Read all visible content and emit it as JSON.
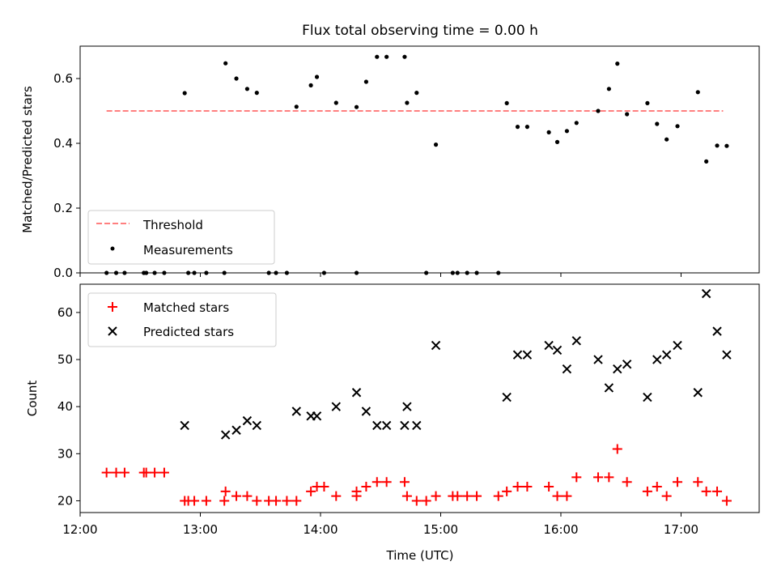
{
  "title": "Flux total observing time = 0.00 h",
  "chart_data": [
    {
      "type": "scatter",
      "ylabel": "Matched/Predicted stars",
      "xlim": [
        12.0,
        17.65
      ],
      "ylim": [
        0.0,
        0.7
      ],
      "yticks": [
        0.0,
        0.2,
        0.4,
        0.6
      ],
      "legend_position": "lower-left",
      "series": [
        {
          "name": "Threshold",
          "style": "dashed-line",
          "color": "#ff7f7f",
          "x": [
            12.22,
            17.35
          ],
          "y": [
            0.5,
            0.5
          ]
        },
        {
          "name": "Measurements",
          "style": "dot",
          "color": "#000000",
          "x": [
            12.22,
            12.3,
            12.37,
            12.53,
            12.55,
            12.62,
            12.7,
            12.87,
            12.9,
            12.95,
            13.05,
            13.2,
            13.21,
            13.3,
            13.39,
            13.47,
            13.57,
            13.63,
            13.72,
            13.8,
            13.92,
            13.97,
            14.03,
            14.13,
            14.3,
            14.3,
            14.38,
            14.47,
            14.55,
            14.7,
            14.72,
            14.8,
            14.88,
            14.96,
            15.1,
            15.14,
            15.22,
            15.3,
            15.48,
            15.55,
            15.64,
            15.72,
            15.9,
            15.97,
            16.05,
            16.13,
            16.31,
            16.4,
            16.47,
            16.55,
            16.72,
            16.8,
            16.88,
            16.97,
            17.14,
            17.21,
            17.3,
            17.38
          ],
          "y": [
            0.0,
            0.0,
            0.0,
            0.0,
            0.0,
            0.0,
            0.0,
            0.555,
            0.0,
            0.0,
            0.0,
            0.0,
            0.647,
            0.6,
            0.568,
            0.556,
            0.0,
            0.0,
            0.0,
            0.513,
            0.579,
            0.605,
            0.0,
            0.525,
            0.512,
            0.0,
            0.59,
            0.667,
            0.667,
            0.667,
            0.525,
            0.556,
            0.0,
            0.396,
            0.0,
            0.0,
            0.0,
            0.0,
            0.0,
            0.524,
            0.451,
            0.451,
            0.434,
            0.404,
            0.438,
            0.463,
            0.5,
            0.568,
            0.646,
            0.49,
            0.524,
            0.46,
            0.412,
            0.453,
            0.558,
            0.344,
            0.393,
            0.392
          ]
        }
      ]
    },
    {
      "type": "scatter",
      "xlabel": "Time (UTC)",
      "ylabel": "Count",
      "xlim": [
        12.0,
        17.65
      ],
      "ylim": [
        17.5,
        66
      ],
      "yticks": [
        20,
        30,
        40,
        50,
        60
      ],
      "xticks": [
        12,
        13,
        14,
        15,
        16,
        17
      ],
      "xticklabels": [
        "12:00",
        "13:00",
        "14:00",
        "15:00",
        "16:00",
        "17:00"
      ],
      "legend_position": "upper-left",
      "series": [
        {
          "name": "Matched stars",
          "style": "plus",
          "color": "#ff0000",
          "x": [
            12.22,
            12.3,
            12.37,
            12.53,
            12.55,
            12.62,
            12.7,
            12.87,
            12.9,
            12.95,
            13.05,
            13.2,
            13.21,
            13.3,
            13.39,
            13.47,
            13.57,
            13.63,
            13.72,
            13.8,
            13.92,
            13.97,
            14.03,
            14.13,
            14.3,
            14.3,
            14.38,
            14.47,
            14.55,
            14.7,
            14.72,
            14.8,
            14.88,
            14.96,
            15.1,
            15.14,
            15.22,
            15.3,
            15.48,
            15.55,
            15.64,
            15.72,
            15.9,
            15.97,
            16.05,
            16.13,
            16.31,
            16.4,
            16.47,
            16.55,
            16.72,
            16.8,
            16.88,
            16.97,
            17.14,
            17.21,
            17.3,
            17.38
          ],
          "y": [
            26,
            26,
            26,
            26,
            26,
            26,
            26,
            20,
            20,
            20,
            20,
            20,
            22,
            21,
            21,
            20,
            20,
            20,
            20,
            20,
            22,
            23,
            23,
            21,
            22,
            21,
            23,
            24,
            24,
            24,
            21,
            20,
            20,
            21,
            21,
            21,
            21,
            21,
            21,
            22,
            23,
            23,
            23,
            21,
            21,
            25,
            25,
            25,
            31,
            24,
            22,
            23,
            21,
            24,
            24,
            22,
            22,
            20
          ]
        },
        {
          "name": "Predicted stars",
          "style": "x",
          "color": "#000000",
          "x": [
            12.87,
            13.21,
            13.3,
            13.39,
            13.47,
            13.8,
            13.92,
            13.97,
            14.13,
            14.3,
            14.38,
            14.47,
            14.55,
            14.7,
            14.72,
            14.8,
            14.96,
            15.55,
            15.64,
            15.72,
            15.9,
            15.97,
            16.05,
            16.13,
            16.31,
            16.4,
            16.47,
            16.55,
            16.72,
            16.8,
            16.88,
            16.97,
            17.14,
            17.21,
            17.3,
            17.38
          ],
          "y": [
            36,
            34,
            35,
            37,
            36,
            39,
            38,
            38,
            40,
            43,
            39,
            36,
            36,
            36,
            40,
            36,
            53,
            42,
            51,
            51,
            53,
            52,
            48,
            54,
            50,
            44,
            48,
            49,
            42,
            50,
            51,
            53,
            43,
            64,
            56,
            51
          ]
        }
      ]
    }
  ]
}
